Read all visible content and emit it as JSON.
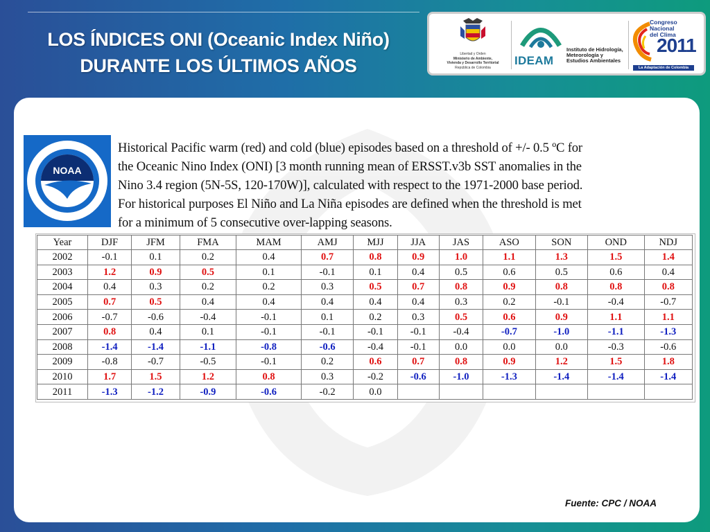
{
  "slide": {
    "title_line1": "LOS ÍNDICES ONI (Oceanic Index Niño)",
    "title_line2": "DURANTE LOS ÚLTIMOS AÑOS",
    "source": "Fuente: CPC / NOAA"
  },
  "logos": {
    "ministry_motto": "Libertad y Orden",
    "ministry_line1": "Ministerio de Ambiente,",
    "ministry_line2": "Vivienda y Desarrollo Territorial",
    "ministry_line3": "República de Colombia",
    "ideam_name": "IDEAM",
    "ideam_desc1": "Instituto de Hidrología,",
    "ideam_desc2": "Meteorología y",
    "ideam_desc3": "Estudios Ambientales",
    "congreso_line1": "Congreso",
    "congreso_line2": "Nacional",
    "congreso_line3": "del Clima",
    "congreso_year": "2011",
    "congreso_band": "La Adaptación de Colombia",
    "noaa_text": "NOAA",
    "colors": {
      "noaa_blue": "#1569c7",
      "ideam_teal": "#1d7a9c",
      "congreso_blue": "#1e3f8f"
    }
  },
  "description": {
    "line1": "Historical Pacific warm (red) and cold (blue) episodes based on a threshold of +/- 0.5 ºC for",
    "line2": "the Oceanic Nino Index (ONI) [3 month running mean of ERSST.v3b SST anomalies in the",
    "line3": "Nino 3.4 region (5N-5S, 120-170W)], calculated with respect to the 1971-2000 base period.",
    "line4": "For historical purposes El Niño and La Niña episodes are defined when the threshold is met",
    "line5": "for a minimum of 5 consecutive over-lapping seasons."
  },
  "table": {
    "headers": [
      "Year",
      "DJF",
      "JFM",
      "FMA",
      "MAM",
      "AMJ",
      "MJJ",
      "JJA",
      "JAS",
      "ASO",
      "SON",
      "OND",
      "NDJ"
    ],
    "rows": [
      {
        "year": "2002",
        "values": [
          "-0.1",
          "0.1",
          "0.2",
          "0.4",
          "0.7",
          "0.8",
          "0.9",
          "1.0",
          "1.1",
          "1.3",
          "1.5",
          "1.4"
        ],
        "styles": [
          "n",
          "n",
          "n",
          "n",
          "w",
          "w",
          "w",
          "w",
          "w",
          "w",
          "w",
          "w"
        ]
      },
      {
        "year": "2003",
        "values": [
          "1.2",
          "0.9",
          "0.5",
          "0.1",
          "-0.1",
          "0.1",
          "0.4",
          "0.5",
          "0.6",
          "0.5",
          "0.6",
          "0.4"
        ],
        "styles": [
          "w",
          "w",
          "w",
          "n",
          "n",
          "n",
          "n",
          "n",
          "n",
          "n",
          "n",
          "n"
        ]
      },
      {
        "year": "2004",
        "values": [
          "0.4",
          "0.3",
          "0.2",
          "0.2",
          "0.3",
          "0.5",
          "0.7",
          "0.8",
          "0.9",
          "0.8",
          "0.8",
          "0.8"
        ],
        "styles": [
          "n",
          "n",
          "n",
          "n",
          "n",
          "w",
          "w",
          "w",
          "w",
          "w",
          "w",
          "w"
        ]
      },
      {
        "year": "2005",
        "values": [
          "0.7",
          "0.5",
          "0.4",
          "0.4",
          "0.4",
          "0.4",
          "0.4",
          "0.3",
          "0.2",
          "-0.1",
          "-0.4",
          "-0.7"
        ],
        "styles": [
          "w",
          "w",
          "n",
          "n",
          "n",
          "n",
          "n",
          "n",
          "n",
          "n",
          "n",
          "n"
        ]
      },
      {
        "year": "2006",
        "values": [
          "-0.7",
          "-0.6",
          "-0.4",
          "-0.1",
          "0.1",
          "0.2",
          "0.3",
          "0.5",
          "0.6",
          "0.9",
          "1.1",
          "1.1"
        ],
        "styles": [
          "n",
          "n",
          "n",
          "n",
          "n",
          "n",
          "n",
          "w",
          "w",
          "w",
          "w",
          "w"
        ]
      },
      {
        "year": "2007",
        "values": [
          "0.8",
          "0.4",
          "0.1",
          "-0.1",
          "-0.1",
          "-0.1",
          "-0.1",
          "-0.4",
          "-0.7",
          "-1.0",
          "-1.1",
          "-1.3"
        ],
        "styles": [
          "w",
          "n",
          "n",
          "n",
          "n",
          "n",
          "n",
          "n",
          "c",
          "c",
          "c",
          "c"
        ]
      },
      {
        "year": "2008",
        "values": [
          "-1.4",
          "-1.4",
          "-1.1",
          "-0.8",
          "-0.6",
          "-0.4",
          "-0.1",
          "0.0",
          "0.0",
          "0.0",
          "-0.3",
          "-0.6"
        ],
        "styles": [
          "c",
          "c",
          "c",
          "c",
          "c",
          "n",
          "n",
          "n",
          "n",
          "n",
          "n",
          "n"
        ]
      },
      {
        "year": "2009",
        "values": [
          "-0.8",
          "-0.7",
          "-0.5",
          "-0.1",
          "0.2",
          "0.6",
          "0.7",
          "0.8",
          "0.9",
          "1.2",
          "1.5",
          "1.8"
        ],
        "styles": [
          "n",
          "n",
          "n",
          "n",
          "n",
          "w",
          "w",
          "w",
          "w",
          "w",
          "w",
          "w"
        ]
      },
      {
        "year": "2010",
        "values": [
          "1.7",
          "1.5",
          "1.2",
          "0.8",
          "0.3",
          "-0.2",
          "-0.6",
          "-1.0",
          "-1.3",
          "-1.4",
          "-1.4",
          "-1.4"
        ],
        "styles": [
          "w",
          "w",
          "w",
          "w",
          "n",
          "n",
          "c",
          "c",
          "c",
          "c",
          "c",
          "c"
        ]
      },
      {
        "year": "2011",
        "values": [
          "-1.3",
          "-1.2",
          "-0.9",
          "-0.6",
          "-0.2",
          "0.0",
          "",
          "",
          "",
          "",
          "",
          ""
        ],
        "styles": [
          "c",
          "c",
          "c",
          "c",
          "n",
          "n",
          "n",
          "n",
          "n",
          "n",
          "n",
          "n"
        ]
      }
    ],
    "colors": {
      "warm": "#e01010",
      "cold": "#1020c0"
    }
  }
}
